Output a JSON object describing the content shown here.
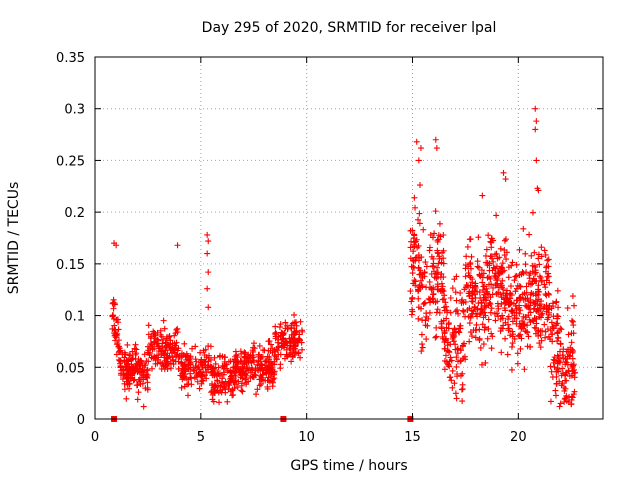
{
  "chart_data": {
    "type": "scatter",
    "title": "Day 295 of 2020, SRMTID for receiver lpal",
    "xlabel": "GPS time / hours",
    "ylabel": "SRMTID / TECUs",
    "xlim": [
      0,
      24
    ],
    "ylim": [
      0,
      0.35
    ],
    "x_ticks": [
      0,
      5,
      10,
      15,
      20
    ],
    "x_tick_labels": [
      "0",
      "5",
      "10",
      "15",
      "20"
    ],
    "y_ticks": [
      0,
      0.05,
      0.1,
      0.15,
      0.2,
      0.25,
      0.3,
      0.35
    ],
    "y_tick_labels": [
      "0",
      "0.05",
      "0.1",
      "0.15",
      "0.2",
      "0.25",
      "0.3",
      "0.35"
    ],
    "grid": true,
    "marker": "plus",
    "color": "#ff0000",
    "gap_markers_x": [
      0.9,
      8.9,
      14.9
    ],
    "series": [
      {
        "name": "SRMTID",
        "segments": [
          {
            "x_start": 0.8,
            "x_end": 9.8,
            "shape": "first"
          },
          {
            "x_start": 14.9,
            "x_end": 22.7,
            "shape": "second"
          }
        ],
        "notable_points": [
          {
            "x": 0.9,
            "y": 0.17
          },
          {
            "x": 1.0,
            "y": 0.168
          },
          {
            "x": 3.9,
            "y": 0.168
          },
          {
            "x": 5.3,
            "y": 0.178
          },
          {
            "x": 5.35,
            "y": 0.172
          },
          {
            "x": 5.3,
            "y": 0.16
          },
          {
            "x": 5.35,
            "y": 0.142
          },
          {
            "x": 5.3,
            "y": 0.126
          },
          {
            "x": 5.35,
            "y": 0.108
          },
          {
            "x": 15.2,
            "y": 0.268
          },
          {
            "x": 15.4,
            "y": 0.262
          },
          {
            "x": 15.3,
            "y": 0.25
          },
          {
            "x": 16.1,
            "y": 0.27
          },
          {
            "x": 16.15,
            "y": 0.262
          },
          {
            "x": 18.3,
            "y": 0.216
          },
          {
            "x": 19.3,
            "y": 0.238
          },
          {
            "x": 19.4,
            "y": 0.232
          },
          {
            "x": 20.8,
            "y": 0.3
          },
          {
            "x": 20.85,
            "y": 0.288
          },
          {
            "x": 20.8,
            "y": 0.28
          },
          {
            "x": 20.85,
            "y": 0.25
          },
          {
            "x": 20.9,
            "y": 0.223
          },
          {
            "x": 20.95,
            "y": 0.221
          },
          {
            "x": 2.3,
            "y": 0.012
          },
          {
            "x": 22.0,
            "y": 0.015
          }
        ]
      }
    ]
  }
}
